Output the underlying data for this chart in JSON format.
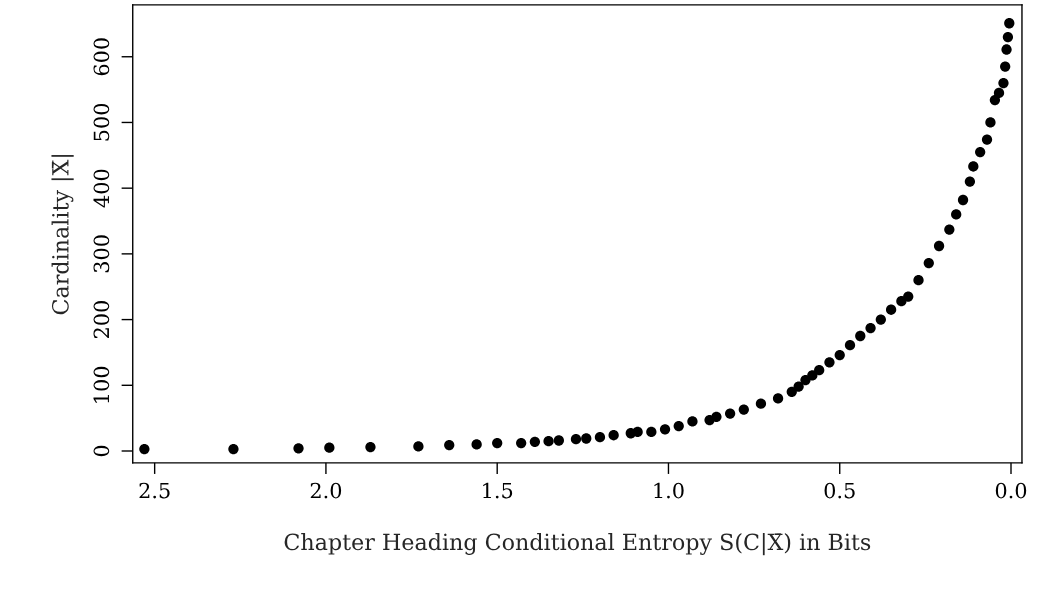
{
  "chart_data": {
    "type": "scatter",
    "xlabel": "Chapter Heading Conditional Entropy S(C|X̄) in Bits",
    "ylabel": "Cardinality |X̄|",
    "x": [
      2.53,
      2.27,
      2.08,
      1.99,
      1.87,
      1.73,
      1.64,
      1.56,
      1.5,
      1.43,
      1.39,
      1.35,
      1.32,
      1.27,
      1.24,
      1.2,
      1.16,
      1.11,
      1.09,
      1.05,
      1.01,
      0.97,
      0.93,
      0.88,
      0.86,
      0.82,
      0.78,
      0.73,
      0.68,
      0.64,
      0.62,
      0.6,
      0.58,
      0.56,
      0.53,
      0.5,
      0.47,
      0.44,
      0.41,
      0.38,
      0.35,
      0.32,
      0.3,
      0.27,
      0.24,
      0.21,
      0.18,
      0.16,
      0.14,
      0.12,
      0.11,
      0.09,
      0.07,
      0.06,
      0.047,
      0.035,
      0.022,
      0.017,
      0.013,
      0.009,
      0.005
    ],
    "values": [
      3,
      3,
      4,
      5,
      6,
      7,
      9,
      10,
      12,
      12,
      14,
      15,
      16,
      18,
      19,
      21,
      24,
      27,
      29,
      29,
      33,
      38,
      45,
      47,
      52,
      57,
      63,
      72,
      80,
      90,
      98,
      108,
      115,
      123,
      135,
      146,
      161,
      175,
      187,
      200,
      215,
      228,
      235,
      260,
      286,
      312,
      337,
      360,
      382,
      410,
      433,
      455,
      474,
      500,
      534,
      545,
      560,
      585,
      611,
      630,
      651
    ],
    "color": "#000000",
    "marker": "circle",
    "xlim": [
      2.564,
      -0.032
    ],
    "xticks": [
      {
        "value": 2.5,
        "label": "2.5"
      },
      {
        "value": 2.0,
        "label": "2.0"
      },
      {
        "value": 1.5,
        "label": "1.5"
      },
      {
        "value": 1.0,
        "label": "1.0"
      },
      {
        "value": 0.5,
        "label": "0.5"
      },
      {
        "value": 0.0,
        "label": "0.0"
      }
    ],
    "ylim": [
      -18,
      679
    ],
    "yticks": [
      0,
      100,
      200,
      300,
      400,
      500,
      600
    ],
    "grid": false,
    "legend": false
  }
}
